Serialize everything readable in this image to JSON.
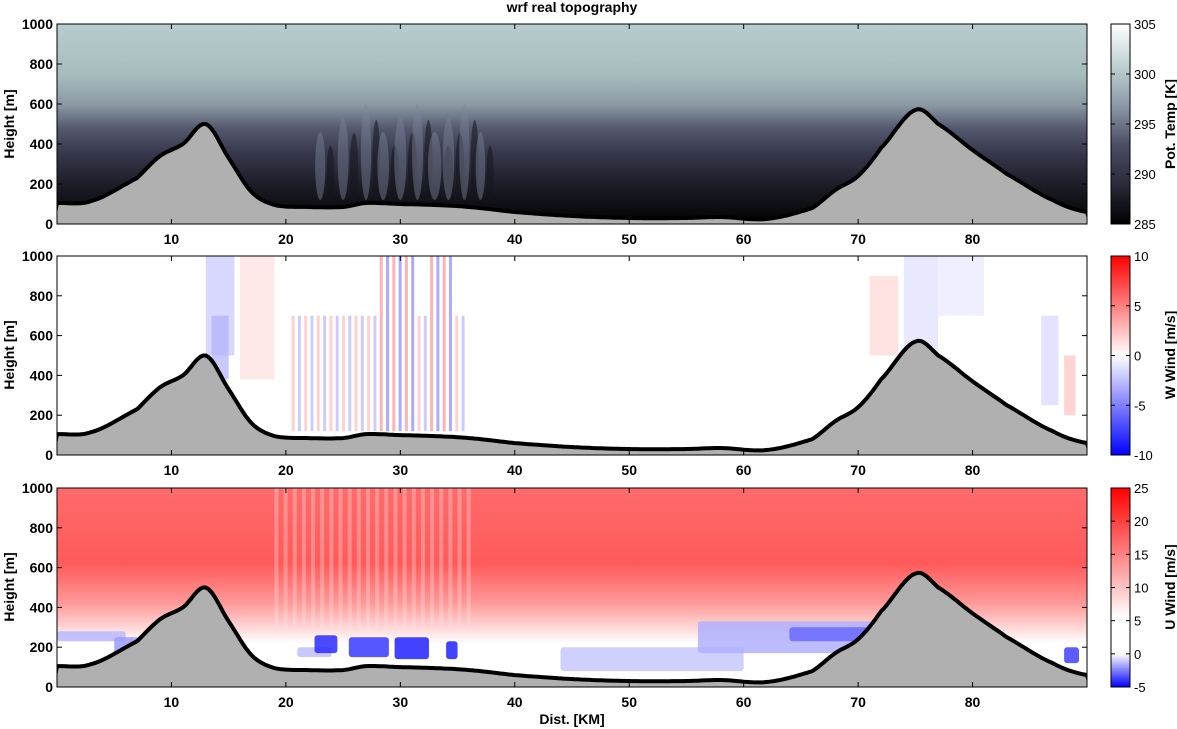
{
  "figure": {
    "title": "wrf real topography",
    "xlabel": "Dist. [KM]"
  },
  "chart_data": [
    {
      "type": "heatmap",
      "title": "wrf real topography",
      "xlabel": "",
      "ylabel": "Height [m]",
      "xlim": [
        0,
        90
      ],
      "ylim": [
        0,
        1000
      ],
      "xticks": [
        10,
        20,
        30,
        40,
        50,
        60,
        70,
        80
      ],
      "yticks": [
        0,
        200,
        400,
        600,
        800,
        1000
      ],
      "colorbar": {
        "label": "Pot. Temp [K]",
        "range": [
          285,
          305
        ],
        "ticks": [
          285,
          290,
          295,
          300,
          305
        ],
        "stops": [
          "#000000",
          "#2a2a3a",
          "#4d4f66",
          "#8e9cab",
          "#c1d3d3",
          "#ffffff"
        ]
      },
      "field": "potential_temperature",
      "terrain": {
        "x": [
          0,
          3,
          7,
          9,
          11,
          13,
          15,
          17,
          19,
          22,
          25,
          27,
          30,
          33,
          36,
          40,
          45,
          50,
          55,
          58,
          62,
          66,
          68,
          70,
          72,
          75,
          77,
          80,
          83,
          87,
          90
        ],
        "y": [
          105,
          115,
          230,
          340,
          400,
          500,
          330,
          160,
          95,
          85,
          85,
          105,
          100,
          95,
          85,
          60,
          40,
          30,
          30,
          35,
          25,
          80,
          170,
          240,
          380,
          570,
          500,
          370,
          250,
          120,
          60
        ]
      },
      "grid": false
    },
    {
      "type": "heatmap",
      "xlabel": "",
      "ylabel": "Height [m]",
      "xlim": [
        0,
        90
      ],
      "ylim": [
        0,
        1000
      ],
      "xticks": [
        10,
        20,
        30,
        40,
        50,
        60,
        70,
        80
      ],
      "yticks": [
        0,
        200,
        400,
        600,
        800,
        1000
      ],
      "colorbar": {
        "label": "W Wind [m/s]",
        "range": [
          -10,
          10
        ],
        "ticks": [
          -10,
          -5,
          0,
          5,
          10
        ],
        "stops": [
          "#0000ff",
          "#ffffff",
          "#ff0000"
        ]
      },
      "field": "vertical_wind",
      "terrain": {
        "x": [
          0,
          3,
          7,
          9,
          11,
          13,
          15,
          17,
          19,
          22,
          25,
          27,
          30,
          33,
          36,
          40,
          45,
          50,
          55,
          58,
          62,
          66,
          68,
          70,
          72,
          75,
          77,
          80,
          83,
          87,
          90
        ],
        "y": [
          105,
          115,
          230,
          340,
          400,
          500,
          330,
          160,
          95,
          85,
          85,
          105,
          100,
          95,
          85,
          60,
          40,
          30,
          30,
          35,
          25,
          80,
          170,
          240,
          380,
          570,
          500,
          370,
          250,
          120,
          60
        ]
      },
      "grid": false
    },
    {
      "type": "heatmap",
      "xlabel": "Dist. [KM]",
      "ylabel": "Height [m]",
      "xlim": [
        0,
        90
      ],
      "ylim": [
        0,
        1000
      ],
      "xticks": [
        10,
        20,
        30,
        40,
        50,
        60,
        70,
        80
      ],
      "yticks": [
        0,
        200,
        400,
        600,
        800,
        1000
      ],
      "colorbar": {
        "label": "U Wind [m/s]",
        "range": [
          -5,
          25
        ],
        "ticks": [
          -5,
          0,
          5,
          10,
          15,
          20,
          25
        ],
        "stops": [
          "#0000ff",
          "#ffffff",
          "#ff0000"
        ]
      },
      "field": "horizontal_wind",
      "terrain": {
        "x": [
          0,
          3,
          7,
          9,
          11,
          13,
          15,
          17,
          19,
          22,
          25,
          27,
          30,
          33,
          36,
          40,
          45,
          50,
          55,
          58,
          62,
          66,
          68,
          70,
          72,
          75,
          77,
          80,
          83,
          87,
          90
        ],
        "y": [
          105,
          115,
          230,
          340,
          400,
          500,
          330,
          160,
          95,
          85,
          85,
          105,
          100,
          95,
          85,
          60,
          40,
          30,
          30,
          35,
          25,
          80,
          170,
          240,
          380,
          570,
          500,
          370,
          250,
          120,
          60
        ]
      },
      "grid": false
    }
  ]
}
